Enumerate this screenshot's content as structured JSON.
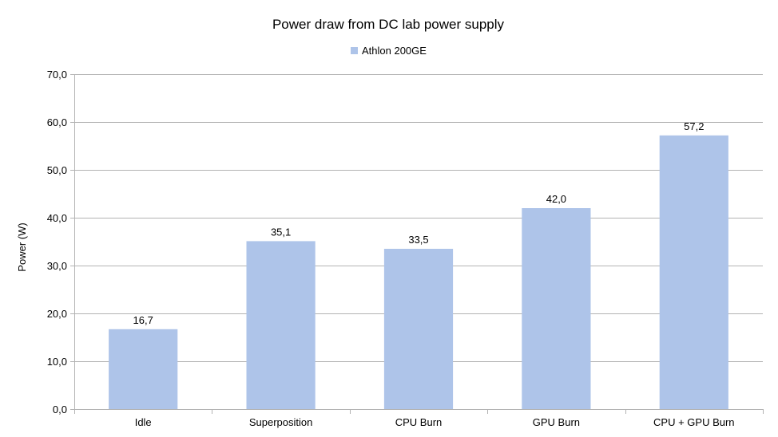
{
  "chart_data": {
    "type": "bar",
    "title": "Power draw from DC lab power supply",
    "xlabel": "",
    "ylabel": "Power (W)",
    "ylim": [
      0,
      70
    ],
    "yticks": [
      "0,0",
      "10,0",
      "20,0",
      "30,0",
      "40,0",
      "50,0",
      "60,0",
      "70,0"
    ],
    "grid": true,
    "legend_position": "top",
    "categories": [
      "Idle",
      "Superposition",
      "CPU Burn",
      "GPU Burn",
      "CPU + GPU Burn"
    ],
    "series": [
      {
        "name": "Athlon 200GE",
        "color": "#aec4e9",
        "values": [
          16.7,
          35.1,
          33.5,
          42.0,
          57.2
        ],
        "data_labels": [
          "16,7",
          "35,1",
          "33,5",
          "42,0",
          "57,2"
        ]
      }
    ]
  }
}
